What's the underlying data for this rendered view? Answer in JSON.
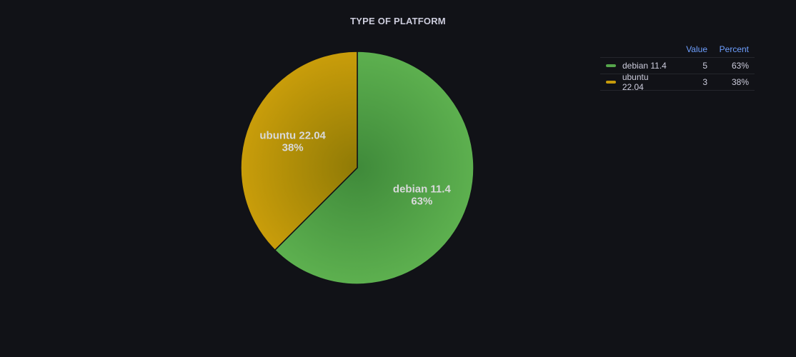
{
  "panel": {
    "title": "TYPE OF PLATFORM"
  },
  "legend": {
    "value_header": "Value",
    "percent_header": "Percent"
  },
  "chart_data": {
    "type": "pie",
    "title": "TYPE OF PLATFORM",
    "slices": [
      {
        "name": "debian 11.4",
        "value": 5,
        "percent": "63%",
        "color": "#56a64b"
      },
      {
        "name": "ubuntu 22.04",
        "value": 3,
        "percent": "38%",
        "color": "#c79b0b"
      }
    ],
    "legend_placement": "right"
  }
}
